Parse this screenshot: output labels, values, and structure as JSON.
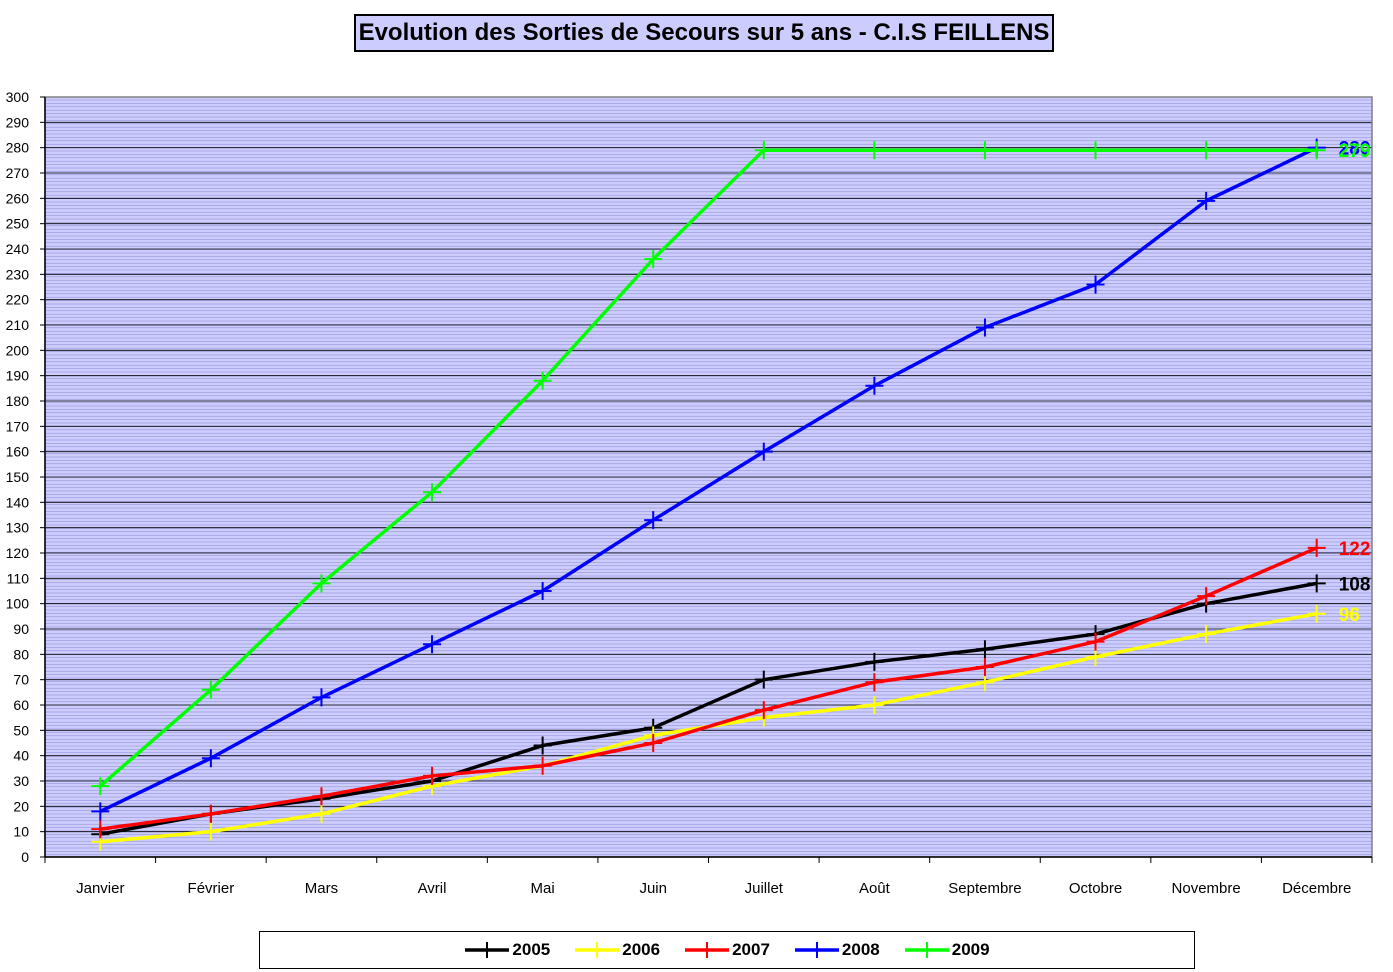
{
  "chart_data": {
    "type": "line",
    "title": "Evolution des Sorties de Secours sur 5 ans - C.I.S FEILLENS",
    "categories": [
      "Janvier",
      "Février",
      "Mars",
      "Avril",
      "Mai",
      "Juin",
      "Juillet",
      "Août",
      "Septembre",
      "Octobre",
      "Novembre",
      "Décembre"
    ],
    "ylim": [
      0,
      300
    ],
    "ytick_step": 10,
    "grid": true,
    "plot_background": "#ccccff",
    "legend_position": "bottom",
    "series": [
      {
        "name": "2005",
        "color": "#000000",
        "values": [
          9,
          17,
          23,
          30,
          44,
          51,
          70,
          77,
          82,
          88,
          100,
          108
        ],
        "end_label": "108"
      },
      {
        "name": "2006",
        "color": "#ffff00",
        "values": [
          6,
          10,
          17,
          28,
          36,
          48,
          55,
          60,
          69,
          79,
          88,
          96
        ],
        "end_label": "96"
      },
      {
        "name": "2007",
        "color": "#ff0000",
        "values": [
          11,
          17,
          24,
          32,
          36,
          45,
          58,
          69,
          75,
          85,
          103,
          122
        ],
        "end_label": "122"
      },
      {
        "name": "2008",
        "color": "#0000ff",
        "values": [
          18,
          39,
          63,
          84,
          105,
          133,
          160,
          186,
          209,
          226,
          259,
          280
        ],
        "end_label": "280"
      },
      {
        "name": "2009",
        "color": "#00ff00",
        "values": [
          28,
          66,
          108,
          144,
          188,
          236,
          279,
          279,
          279,
          279,
          279,
          279
        ],
        "end_label": "279"
      }
    ]
  }
}
